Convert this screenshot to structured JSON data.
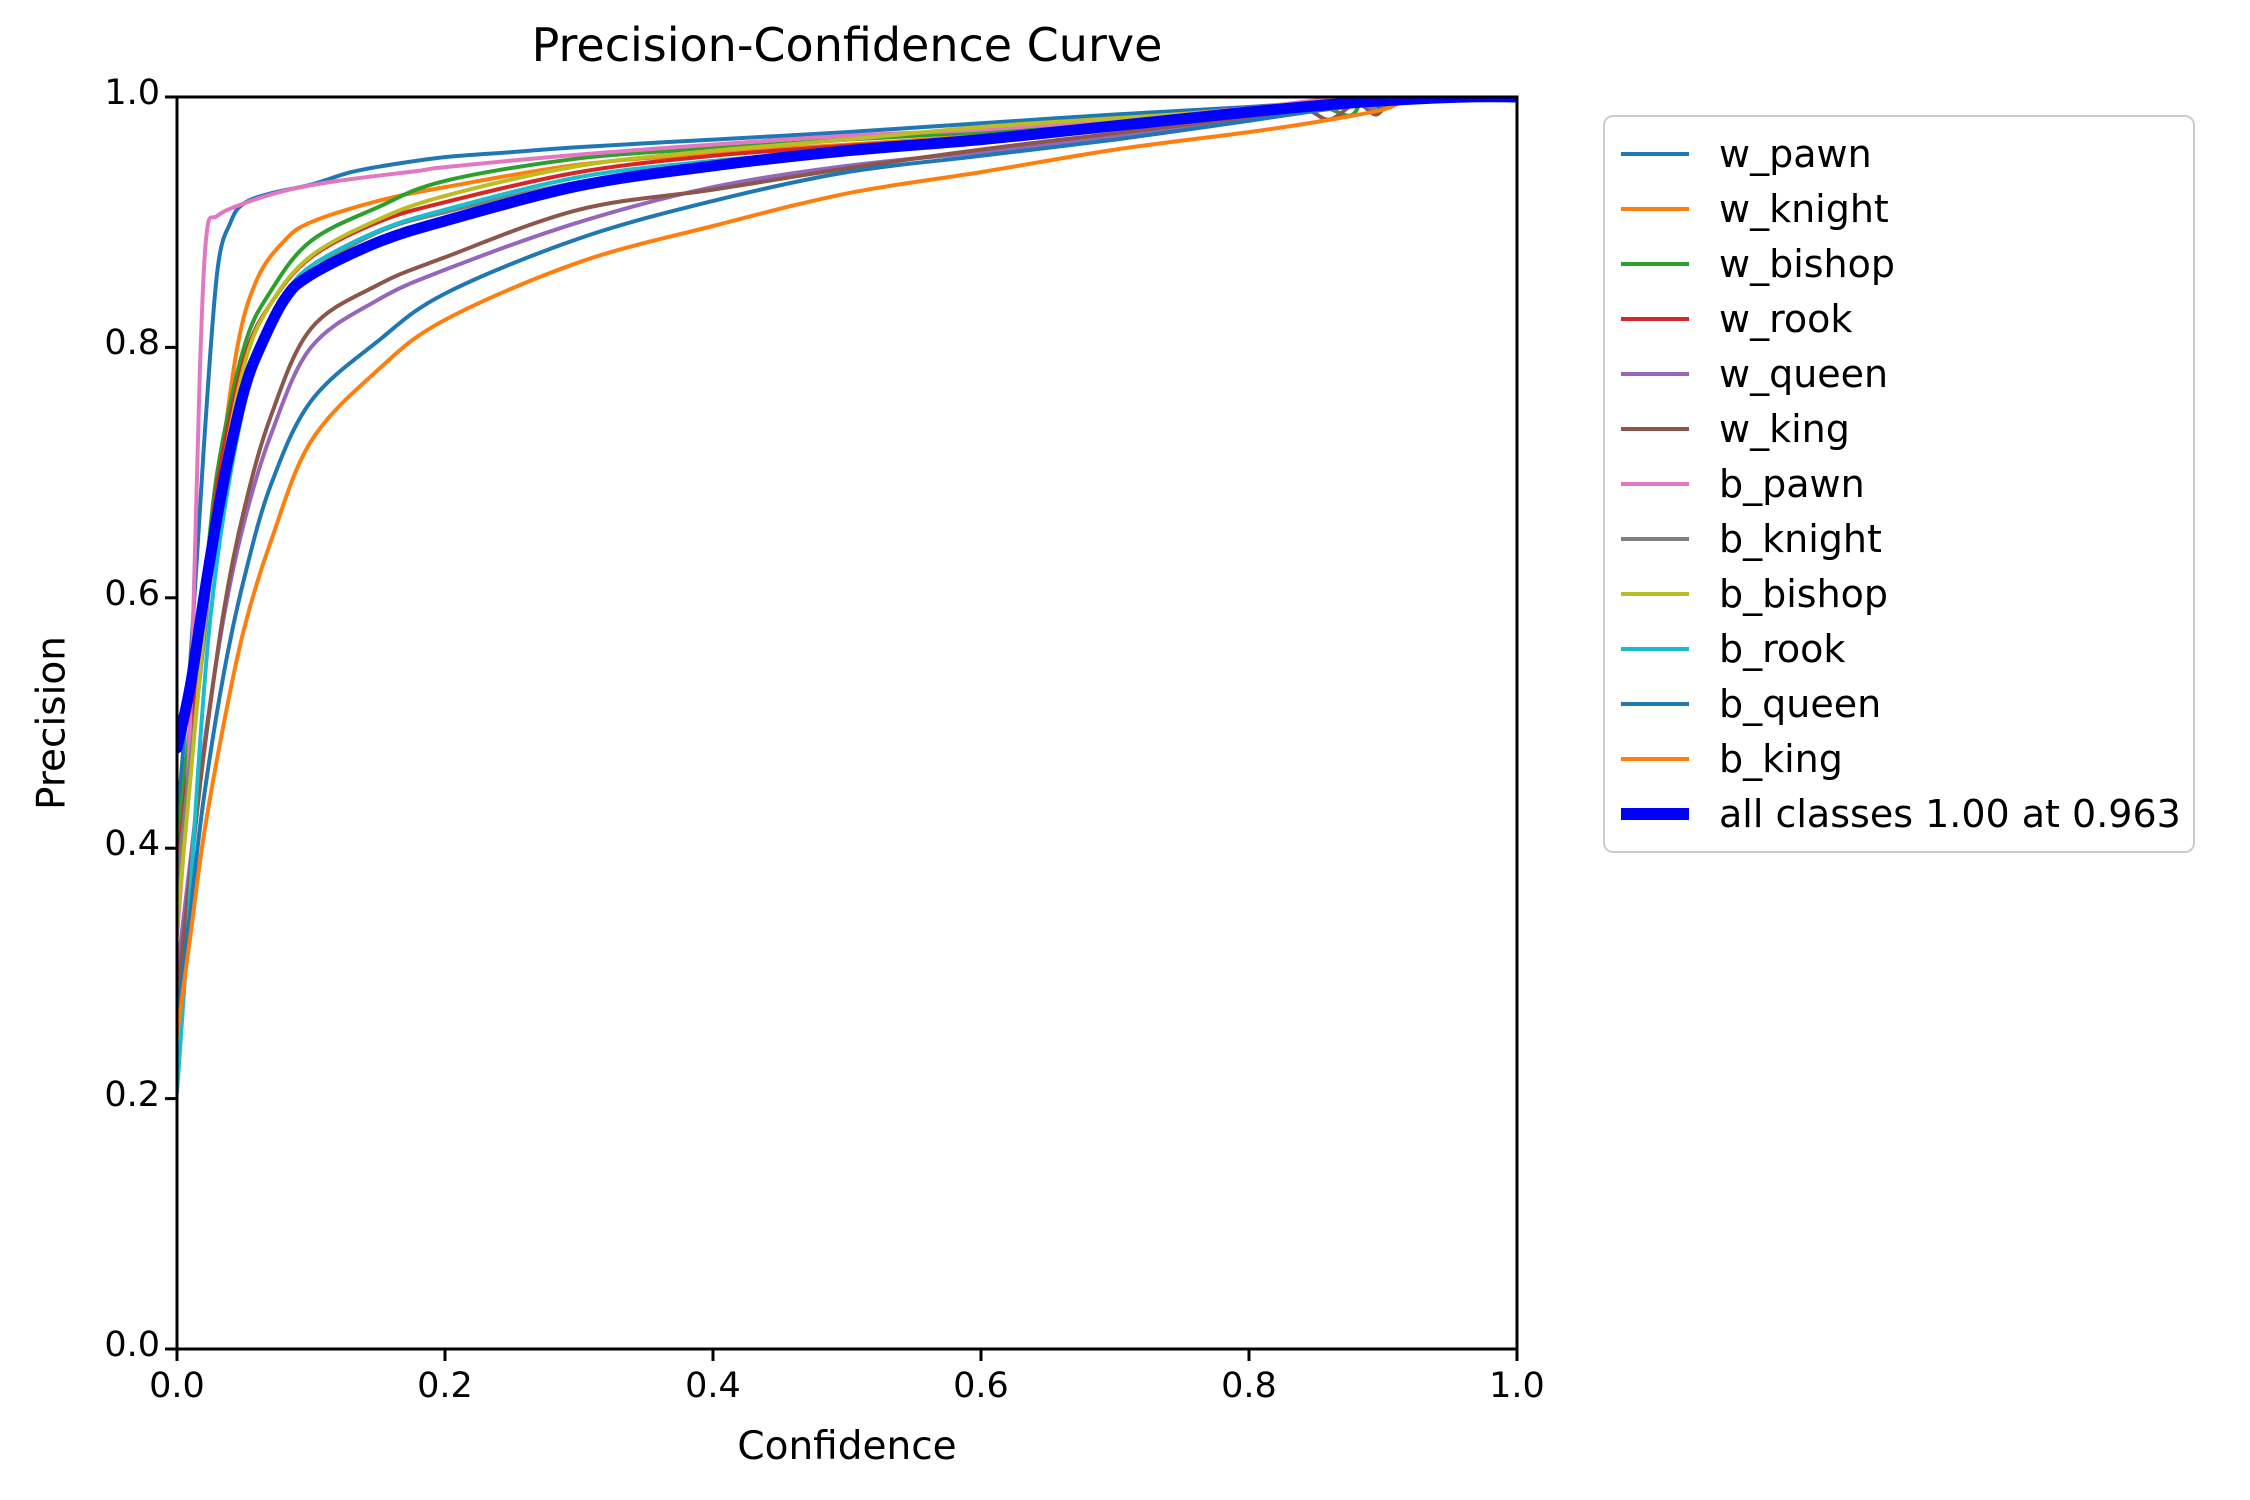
{
  "chart_data": {
    "type": "line",
    "title": "Precision-Confidence Curve",
    "xlabel": "Confidence",
    "ylabel": "Precision",
    "xlim": [
      0.0,
      1.0
    ],
    "ylim": [
      0.0,
      1.0
    ],
    "x_ticks": [
      0.0,
      0.2,
      0.4,
      0.6,
      0.8,
      1.0
    ],
    "y_ticks": [
      0.0,
      0.2,
      0.4,
      0.6,
      0.8,
      1.0
    ],
    "grid": false,
    "legend_position": "outside-right",
    "best_overall": "all classes 1.00 at 0.963",
    "series": [
      {
        "name": "w_pawn",
        "color": "#1f77b4",
        "line_width": 4,
        "points": [
          [
            0,
            0.42
          ],
          [
            0.01,
            0.55
          ],
          [
            0.02,
            0.72
          ],
          [
            0.03,
            0.86
          ],
          [
            0.04,
            0.9
          ],
          [
            0.05,
            0.915
          ],
          [
            0.07,
            0.923
          ],
          [
            0.1,
            0.93
          ],
          [
            0.13,
            0.94
          ],
          [
            0.16,
            0.946
          ],
          [
            0.2,
            0.952
          ],
          [
            0.25,
            0.956
          ],
          [
            0.3,
            0.96
          ],
          [
            0.4,
            0.966
          ],
          [
            0.5,
            0.972
          ],
          [
            0.6,
            0.979
          ],
          [
            0.7,
            0.986
          ],
          [
            0.8,
            0.992
          ],
          [
            0.85,
            0.996
          ],
          [
            0.88,
            0.998
          ],
          [
            0.9,
            0.993
          ],
          [
            0.91,
            1.0
          ]
        ]
      },
      {
        "name": "w_knight",
        "color": "#ff7f0e",
        "line_width": 4,
        "points": [
          [
            0,
            0.36
          ],
          [
            0.01,
            0.46
          ],
          [
            0.02,
            0.57
          ],
          [
            0.03,
            0.68
          ],
          [
            0.045,
            0.8
          ],
          [
            0.06,
            0.855
          ],
          [
            0.08,
            0.885
          ],
          [
            0.1,
            0.9
          ],
          [
            0.15,
            0.917
          ],
          [
            0.2,
            0.928
          ],
          [
            0.3,
            0.946
          ],
          [
            0.4,
            0.955
          ],
          [
            0.5,
            0.962
          ],
          [
            0.6,
            0.969
          ],
          [
            0.7,
            0.977
          ],
          [
            0.8,
            0.987
          ],
          [
            0.85,
            0.992
          ],
          [
            0.88,
            0.996
          ],
          [
            0.9,
            0.99
          ],
          [
            0.91,
            1.0
          ]
        ]
      },
      {
        "name": "w_bishop",
        "color": "#2ca02c",
        "line_width": 4,
        "points": [
          [
            0,
            0.4
          ],
          [
            0.01,
            0.5
          ],
          [
            0.02,
            0.6
          ],
          [
            0.03,
            0.7
          ],
          [
            0.05,
            0.8
          ],
          [
            0.07,
            0.845
          ],
          [
            0.1,
            0.885
          ],
          [
            0.15,
            0.912
          ],
          [
            0.2,
            0.933
          ],
          [
            0.3,
            0.951
          ],
          [
            0.4,
            0.959
          ],
          [
            0.5,
            0.966
          ],
          [
            0.6,
            0.972
          ],
          [
            0.7,
            0.98
          ],
          [
            0.8,
            0.989
          ],
          [
            0.85,
            0.993
          ],
          [
            0.875,
            0.985
          ],
          [
            0.885,
            0.997
          ],
          [
            0.9,
            1.0
          ]
        ]
      },
      {
        "name": "w_rook",
        "color": "#d62728",
        "line_width": 4,
        "points": [
          [
            0,
            0.38
          ],
          [
            0.01,
            0.48
          ],
          [
            0.02,
            0.585
          ],
          [
            0.03,
            0.69
          ],
          [
            0.05,
            0.79
          ],
          [
            0.07,
            0.835
          ],
          [
            0.1,
            0.872
          ],
          [
            0.15,
            0.9
          ],
          [
            0.2,
            0.916
          ],
          [
            0.3,
            0.94
          ],
          [
            0.4,
            0.953
          ],
          [
            0.5,
            0.961
          ],
          [
            0.6,
            0.968
          ],
          [
            0.7,
            0.977
          ],
          [
            0.8,
            0.988
          ],
          [
            0.85,
            0.993
          ],
          [
            0.9,
            0.998
          ],
          [
            0.905,
            1.0
          ]
        ]
      },
      {
        "name": "w_queen",
        "color": "#9467bd",
        "line_width": 4,
        "points": [
          [
            0,
            0.3
          ],
          [
            0.01,
            0.39
          ],
          [
            0.02,
            0.48
          ],
          [
            0.035,
            0.585
          ],
          [
            0.05,
            0.66
          ],
          [
            0.07,
            0.73
          ],
          [
            0.1,
            0.8
          ],
          [
            0.15,
            0.838
          ],
          [
            0.2,
            0.862
          ],
          [
            0.3,
            0.9
          ],
          [
            0.4,
            0.928
          ],
          [
            0.5,
            0.945
          ],
          [
            0.6,
            0.956
          ],
          [
            0.7,
            0.968
          ],
          [
            0.8,
            0.982
          ],
          [
            0.85,
            0.989
          ],
          [
            0.9,
            0.996
          ],
          [
            0.91,
            1.0
          ]
        ]
      },
      {
        "name": "w_king",
        "color": "#8c564b",
        "line_width": 4,
        "points": [
          [
            0,
            0.28
          ],
          [
            0.01,
            0.38
          ],
          [
            0.02,
            0.475
          ],
          [
            0.035,
            0.59
          ],
          [
            0.05,
            0.67
          ],
          [
            0.07,
            0.745
          ],
          [
            0.1,
            0.815
          ],
          [
            0.15,
            0.85
          ],
          [
            0.2,
            0.872
          ],
          [
            0.3,
            0.91
          ],
          [
            0.4,
            0.926
          ],
          [
            0.5,
            0.943
          ],
          [
            0.6,
            0.958
          ],
          [
            0.7,
            0.971
          ],
          [
            0.8,
            0.984
          ],
          [
            0.84,
            0.99
          ],
          [
            0.86,
            0.982
          ],
          [
            0.88,
            0.995
          ],
          [
            0.895,
            0.986
          ],
          [
            0.905,
            1.0
          ]
        ]
      },
      {
        "name": "b_pawn",
        "color": "#e377c2",
        "line_width": 4,
        "points": [
          [
            0,
            0.33
          ],
          [
            0.008,
            0.45
          ],
          [
            0.013,
            0.62
          ],
          [
            0.017,
            0.78
          ],
          [
            0.022,
            0.89
          ],
          [
            0.03,
            0.905
          ],
          [
            0.05,
            0.915
          ],
          [
            0.08,
            0.925
          ],
          [
            0.12,
            0.933
          ],
          [
            0.18,
            0.941
          ],
          [
            0.2,
            0.944
          ],
          [
            0.3,
            0.954
          ],
          [
            0.4,
            0.962
          ],
          [
            0.5,
            0.969
          ],
          [
            0.6,
            0.974
          ],
          [
            0.7,
            0.982
          ],
          [
            0.8,
            0.991
          ],
          [
            0.84,
            0.996
          ],
          [
            0.87,
            1.0
          ]
        ]
      },
      {
        "name": "b_knight",
        "color": "#7f7f7f",
        "line_width": 4,
        "points": [
          [
            0,
            0.37
          ],
          [
            0.01,
            0.47
          ],
          [
            0.02,
            0.565
          ],
          [
            0.03,
            0.665
          ],
          [
            0.05,
            0.77
          ],
          [
            0.07,
            0.82
          ],
          [
            0.1,
            0.86
          ],
          [
            0.15,
            0.892
          ],
          [
            0.2,
            0.908
          ],
          [
            0.3,
            0.932
          ],
          [
            0.4,
            0.946
          ],
          [
            0.5,
            0.956
          ],
          [
            0.6,
            0.965
          ],
          [
            0.7,
            0.975
          ],
          [
            0.8,
            0.986
          ],
          [
            0.85,
            0.992
          ],
          [
            0.88,
            0.996
          ],
          [
            0.895,
            0.99
          ],
          [
            0.905,
            1.0
          ]
        ]
      },
      {
        "name": "b_bishop",
        "color": "#bcbd22",
        "line_width": 4,
        "points": [
          [
            0,
            0.34
          ],
          [
            0.01,
            0.455
          ],
          [
            0.02,
            0.575
          ],
          [
            0.03,
            0.675
          ],
          [
            0.05,
            0.785
          ],
          [
            0.07,
            0.835
          ],
          [
            0.1,
            0.873
          ],
          [
            0.15,
            0.902
          ],
          [
            0.2,
            0.921
          ],
          [
            0.3,
            0.945
          ],
          [
            0.4,
            0.957
          ],
          [
            0.5,
            0.966
          ],
          [
            0.6,
            0.976
          ],
          [
            0.7,
            0.983
          ],
          [
            0.8,
            0.99
          ],
          [
            0.85,
            0.995
          ],
          [
            0.9,
            1.0
          ]
        ]
      },
      {
        "name": "b_rook",
        "color": "#17becf",
        "line_width": 4,
        "points": [
          [
            0,
            0.205
          ],
          [
            0.008,
            0.33
          ],
          [
            0.015,
            0.45
          ],
          [
            0.025,
            0.585
          ],
          [
            0.04,
            0.7
          ],
          [
            0.06,
            0.795
          ],
          [
            0.08,
            0.84
          ],
          [
            0.1,
            0.865
          ],
          [
            0.15,
            0.893
          ],
          [
            0.2,
            0.91
          ],
          [
            0.3,
            0.936
          ],
          [
            0.4,
            0.949
          ],
          [
            0.5,
            0.958
          ],
          [
            0.6,
            0.967
          ],
          [
            0.7,
            0.977
          ],
          [
            0.8,
            0.988
          ],
          [
            0.85,
            0.993
          ],
          [
            0.88,
            0.998
          ],
          [
            0.89,
            1.0
          ]
        ]
      },
      {
        "name": "b_queen",
        "color": "#1f77b4",
        "line_width": 4,
        "points": [
          [
            0,
            0.26
          ],
          [
            0.01,
            0.35
          ],
          [
            0.02,
            0.44
          ],
          [
            0.035,
            0.54
          ],
          [
            0.05,
            0.615
          ],
          [
            0.07,
            0.69
          ],
          [
            0.1,
            0.757
          ],
          [
            0.15,
            0.805
          ],
          [
            0.2,
            0.843
          ],
          [
            0.3,
            0.887
          ],
          [
            0.4,
            0.917
          ],
          [
            0.5,
            0.94
          ],
          [
            0.6,
            0.953
          ],
          [
            0.7,
            0.966
          ],
          [
            0.8,
            0.981
          ],
          [
            0.85,
            0.989
          ],
          [
            0.89,
            0.995
          ],
          [
            0.9,
            0.99
          ],
          [
            0.91,
            1.0
          ]
        ]
      },
      {
        "name": "b_king",
        "color": "#ff7f0e",
        "line_width": 4,
        "points": [
          [
            0,
            0.25
          ],
          [
            0.01,
            0.33
          ],
          [
            0.02,
            0.41
          ],
          [
            0.035,
            0.5
          ],
          [
            0.05,
            0.575
          ],
          [
            0.07,
            0.645
          ],
          [
            0.1,
            0.725
          ],
          [
            0.15,
            0.782
          ],
          [
            0.2,
            0.822
          ],
          [
            0.3,
            0.868
          ],
          [
            0.4,
            0.897
          ],
          [
            0.5,
            0.923
          ],
          [
            0.6,
            0.94
          ],
          [
            0.7,
            0.958
          ],
          [
            0.8,
            0.972
          ],
          [
            0.85,
            0.98
          ],
          [
            0.9,
            0.99
          ],
          [
            0.92,
            1.0
          ]
        ]
      },
      {
        "name": "all classes 1.00 at 0.963",
        "color": "#0000ff",
        "line_width": 11,
        "points": [
          [
            0,
            0.48
          ],
          [
            0.01,
            0.53
          ],
          [
            0.02,
            0.6
          ],
          [
            0.03,
            0.665
          ],
          [
            0.04,
            0.72
          ],
          [
            0.05,
            0.765
          ],
          [
            0.06,
            0.795
          ],
          [
            0.08,
            0.838
          ],
          [
            0.1,
            0.858
          ],
          [
            0.15,
            0.884
          ],
          [
            0.2,
            0.901
          ],
          [
            0.3,
            0.929
          ],
          [
            0.4,
            0.945
          ],
          [
            0.5,
            0.957
          ],
          [
            0.6,
            0.966
          ],
          [
            0.7,
            0.977
          ],
          [
            0.8,
            0.988
          ],
          [
            0.85,
            0.993
          ],
          [
            0.9,
            0.997
          ],
          [
            0.963,
            1.0
          ],
          [
            1.0,
            1.0
          ]
        ]
      }
    ]
  },
  "colors": {
    "background": "#ffffff",
    "spine": "#000000",
    "text": "#000000",
    "legend_border": "#cccccc",
    "all_classes_accent": "#0000ff"
  }
}
